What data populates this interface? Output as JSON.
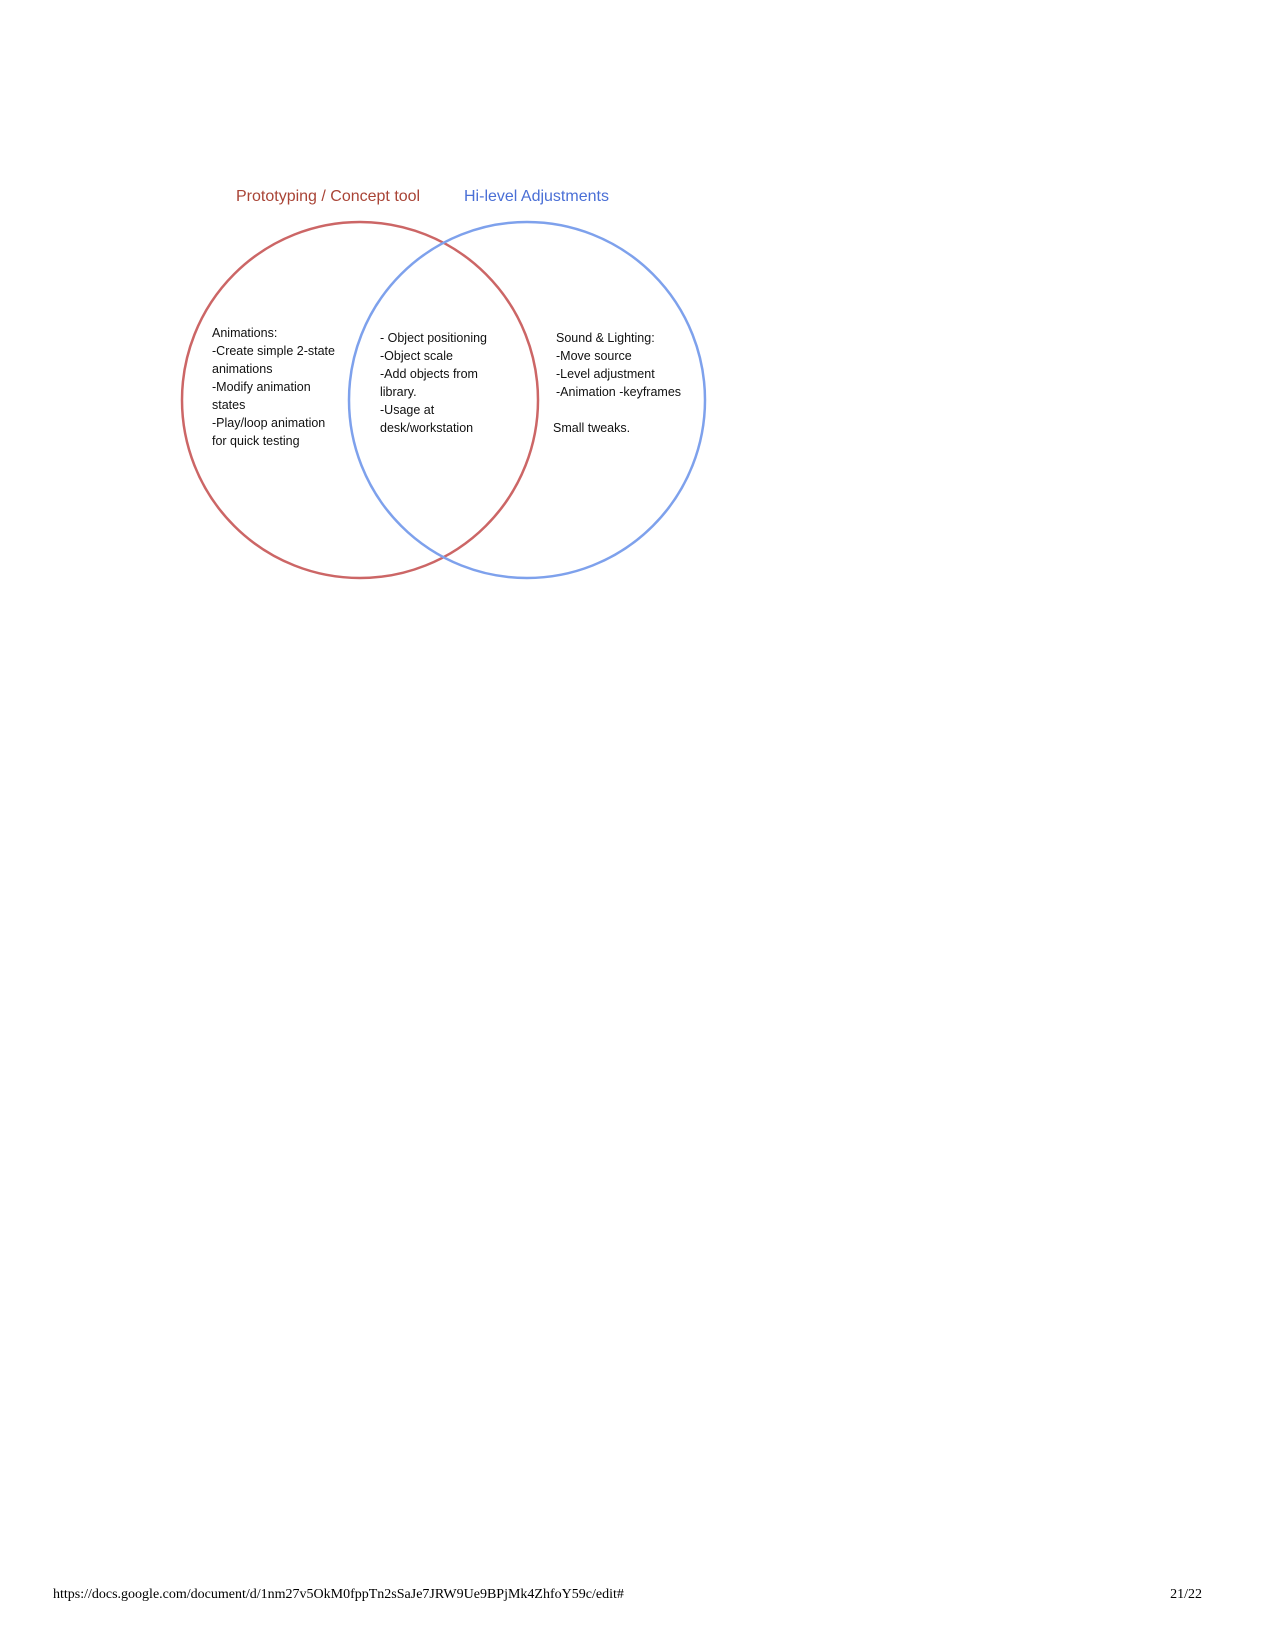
{
  "diagram": {
    "left_set": {
      "title": "Prototyping / Concept tool",
      "color": "#cc6666",
      "title_color": "#a94436",
      "lines": [
        "Animations:",
        "-Create simple 2-state",
        "animations",
        "-Modify animation",
        "states",
        "-Play/loop animation",
        "for quick testing"
      ]
    },
    "right_set": {
      "title": "Hi-level Adjustments",
      "color": "#7ea1ec",
      "title_color": "#4a6fd6",
      "lines": [
        "Sound & Lighting:",
        "-Move source",
        "-Level adjustment",
        "-Animation -keyframes",
        "",
        "Small tweaks."
      ]
    },
    "intersection": {
      "lines": [
        "- Object positioning",
        "-Object scale",
        "-Add objects from",
        "library.",
        "-Usage at",
        "desk/workstation"
      ]
    }
  },
  "footer": {
    "url": "https://docs.google.com/document/d/1nm27v5OkM0fppTn2sSaJe7JRW9Ue9BPjMk4ZhfoY59c/edit#",
    "page": "21/22"
  }
}
